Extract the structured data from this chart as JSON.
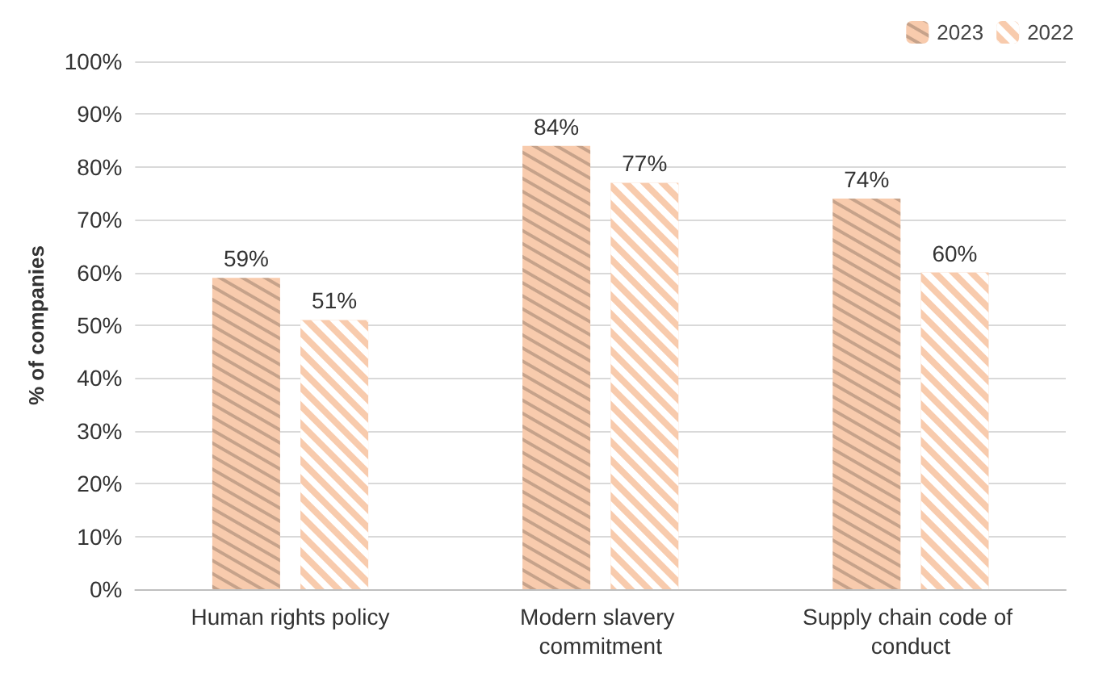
{
  "chart_data": {
    "type": "bar",
    "ylabel": "% of companies",
    "categories": [
      "Human rights policy",
      "Modern slavery commitment",
      "Supply chain code of conduct"
    ],
    "series": [
      {
        "name": "2023",
        "color": "#f8cbad",
        "values": [
          59,
          84,
          74
        ],
        "value_labels": [
          "59%",
          "84%",
          "74%"
        ]
      },
      {
        "name": "2022",
        "color": "#f8cbad",
        "values": [
          51,
          77,
          60
        ],
        "value_labels": [
          "51%",
          "77%",
          "60%"
        ]
      }
    ],
    "ylim": [
      0,
      100
    ],
    "yticks": [
      {
        "value": 0,
        "label": "0%"
      },
      {
        "value": 10,
        "label": "10%"
      },
      {
        "value": 20,
        "label": "20%"
      },
      {
        "value": 30,
        "label": "30%"
      },
      {
        "value": 40,
        "label": "40%"
      },
      {
        "value": 50,
        "label": "50%"
      },
      {
        "value": 60,
        "label": "60%"
      },
      {
        "value": 70,
        "label": "70%"
      },
      {
        "value": 80,
        "label": "80%"
      },
      {
        "value": 90,
        "label": "90%"
      },
      {
        "value": 100,
        "label": "100%"
      }
    ],
    "grid": "y",
    "legend": "top right"
  }
}
